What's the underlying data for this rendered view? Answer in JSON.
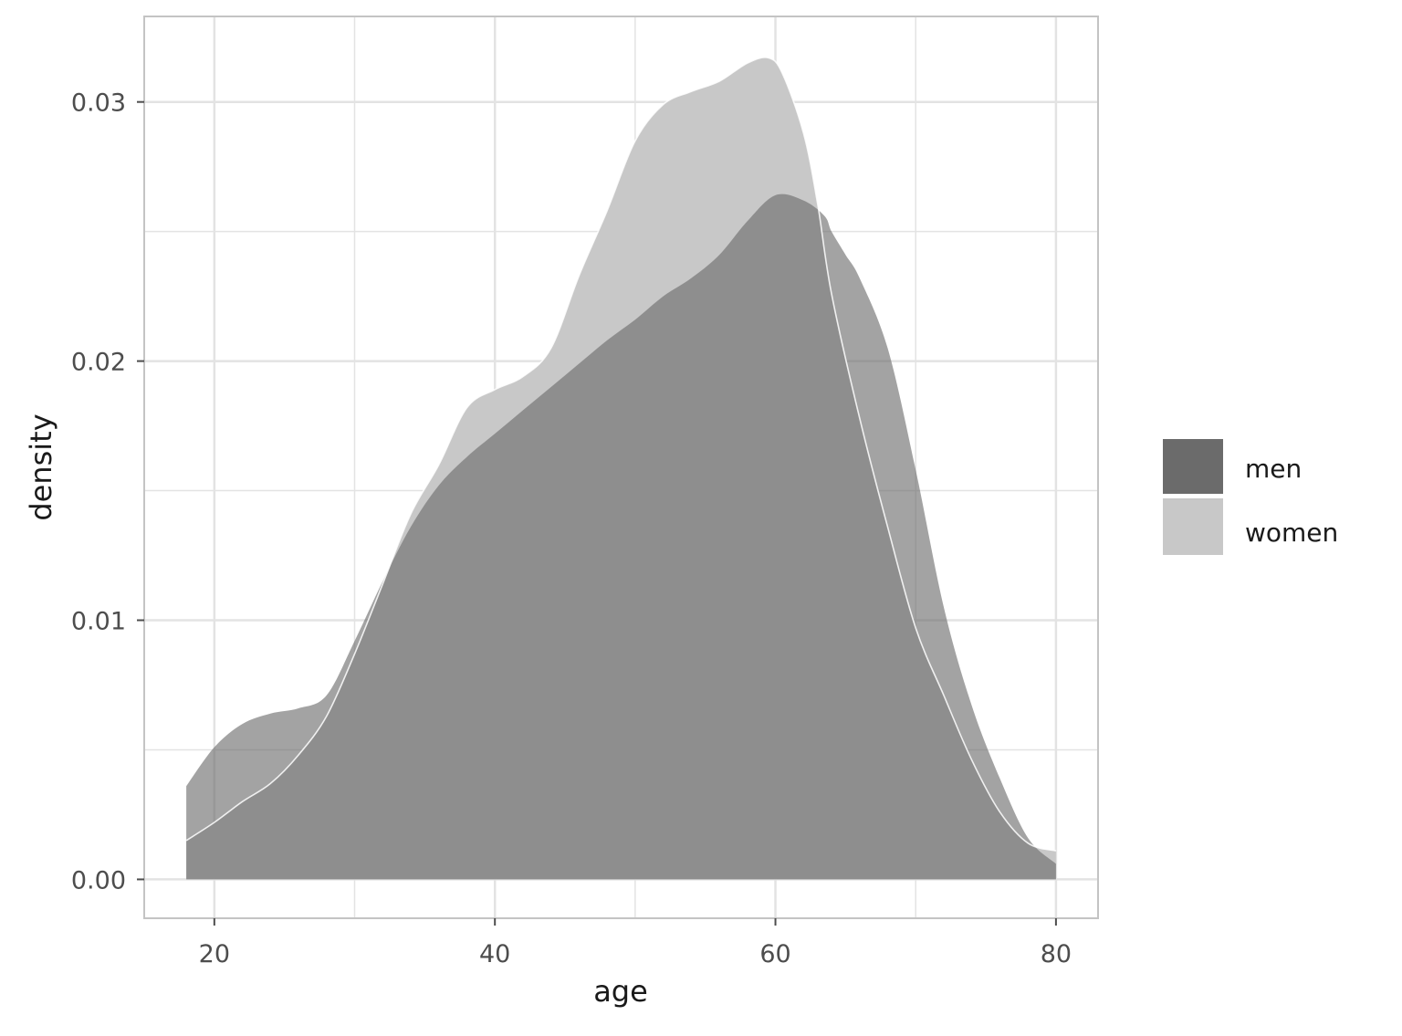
{
  "chart_data": {
    "type": "area",
    "chart_subtype": "density",
    "xlabel": "age",
    "ylabel": "density",
    "xlim": [
      15,
      83
    ],
    "ylim": [
      -0.0015,
      0.0333
    ],
    "x_ticks": [
      20,
      40,
      60,
      80
    ],
    "x_tick_labels": [
      "20",
      "40",
      "60",
      "80"
    ],
    "y_ticks": [
      0.0,
      0.01,
      0.02,
      0.03
    ],
    "y_tick_labels": [
      "0.00",
      "0.01",
      "0.02",
      "0.03"
    ],
    "grid": true,
    "legend_position": "right",
    "colors": {
      "men": "#6b6b6b",
      "women": "#c8c8c8",
      "overlap": "#999999",
      "grid": "#e3e3e3",
      "panel_border": "#c4c4c4"
    },
    "series": [
      {
        "name": "men",
        "x": [
          18,
          20,
          22,
          24,
          26,
          28,
          30,
          32,
          34,
          36,
          38,
          40,
          42,
          44,
          46,
          48,
          50,
          52,
          54,
          56,
          58,
          60,
          62,
          63.5,
          64,
          65,
          66,
          68,
          70,
          72,
          74,
          76,
          78,
          80
        ],
        "y": [
          0.0036,
          0.0051,
          0.006,
          0.0064,
          0.0066,
          0.0071,
          0.0092,
          0.0115,
          0.0136,
          0.0152,
          0.0163,
          0.0172,
          0.0181,
          0.019,
          0.0199,
          0.0208,
          0.0216,
          0.0225,
          0.0232,
          0.0241,
          0.0254,
          0.0264,
          0.0262,
          0.0256,
          0.025,
          0.0241,
          0.0232,
          0.0205,
          0.0158,
          0.0105,
          0.0067,
          0.0039,
          0.0016,
          0.0006
        ]
      },
      {
        "name": "women",
        "x": [
          18,
          20,
          22,
          24,
          26,
          28,
          30,
          32,
          34,
          36,
          38,
          40,
          42,
          44,
          46,
          48,
          50,
          52,
          54,
          56,
          58,
          59.5,
          60.5,
          62,
          63,
          64,
          66,
          68,
          70,
          72,
          74,
          76,
          78,
          80
        ],
        "y": [
          0.0015,
          0.0022,
          0.003,
          0.0037,
          0.0048,
          0.0063,
          0.0087,
          0.0114,
          0.0141,
          0.016,
          0.0182,
          0.0189,
          0.0194,
          0.0205,
          0.0233,
          0.0258,
          0.0285,
          0.0299,
          0.0304,
          0.0308,
          0.0315,
          0.0317,
          0.0311,
          0.0288,
          0.0261,
          0.0226,
          0.0178,
          0.0136,
          0.0097,
          0.0071,
          0.0046,
          0.0026,
          0.0014,
          0.0011
        ]
      }
    ]
  }
}
